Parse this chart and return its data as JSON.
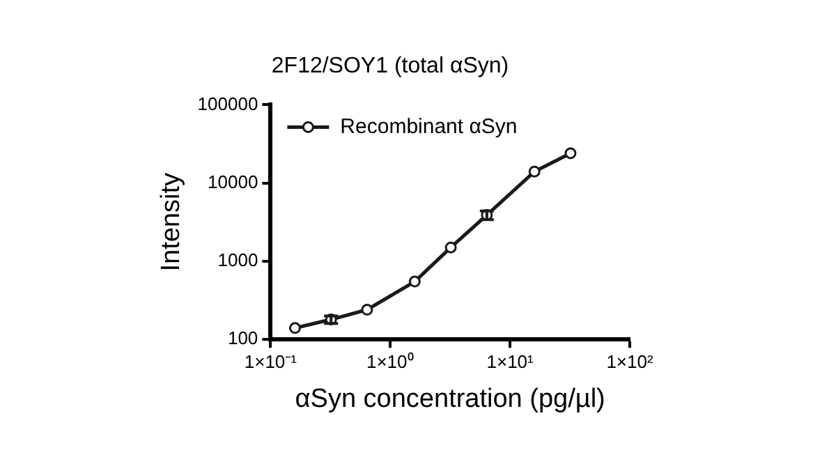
{
  "chart_data": {
    "type": "line",
    "title": "2F12/SOY1 (total αSyn)",
    "xlabel": "αSyn concentration (pg/µl)",
    "ylabel": "Intensity",
    "x": [
      0.16,
      0.32,
      0.64,
      1.6,
      3.2,
      6.4,
      16,
      32
    ],
    "series": [
      {
        "name": "Recombinant αSyn",
        "color": "#1a1a1a",
        "values": [
          140,
          180,
          240,
          550,
          1500,
          3900,
          14000,
          24000
        ],
        "errors": [
          null,
          20,
          null,
          null,
          null,
          500,
          null,
          null
        ]
      }
    ],
    "log": "xy",
    "xlim": [
      0.1,
      100
    ],
    "ylim": [
      100,
      100000
    ],
    "xticks": [
      {
        "value": 0.1,
        "label": "1×10⁻¹"
      },
      {
        "value": 1,
        "label": "1×10⁰"
      },
      {
        "value": 10,
        "label": "1×10¹"
      },
      {
        "value": 100,
        "label": "1×10²"
      }
    ],
    "yticks": [
      100,
      1000,
      10000,
      100000
    ],
    "grid": false,
    "legend": "top left",
    "marker": "circle",
    "line_style": "solid"
  }
}
